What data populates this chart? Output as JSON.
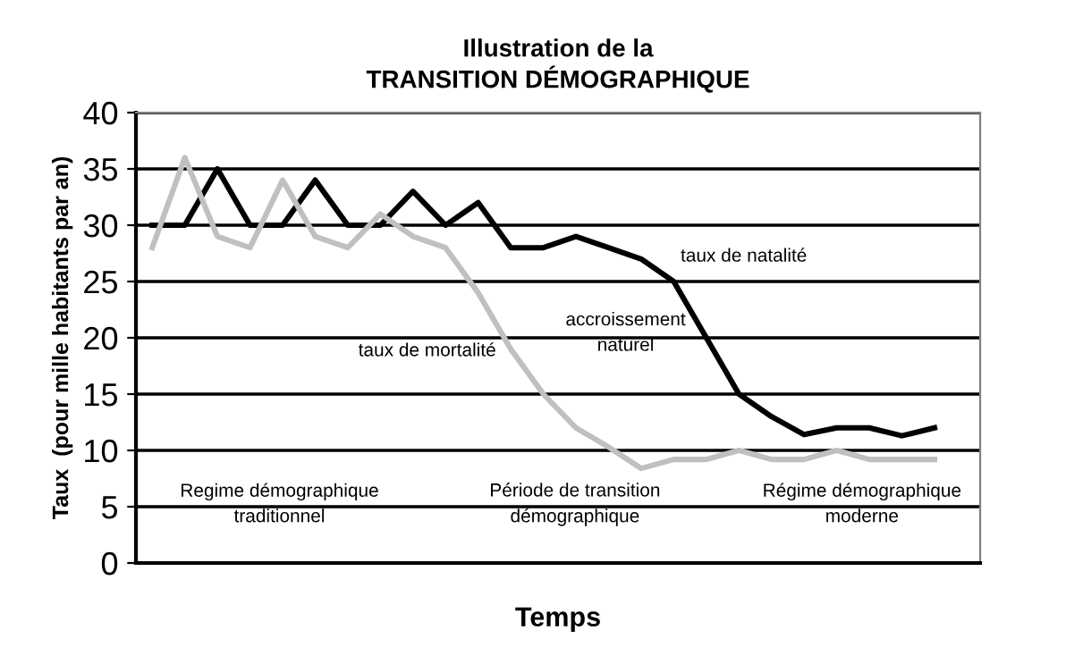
{
  "chart_data": {
    "type": "line",
    "title": "Illustration de la\nTRANSITION DÉMOGRAPHIQUE",
    "xlabel": "Temps",
    "ylabel": "Taux  (pour mille habitants par an)",
    "categories": [
      null,
      null,
      null,
      null,
      null,
      null,
      null,
      null,
      null,
      null,
      null,
      null,
      null,
      null,
      null,
      null,
      null,
      null,
      null,
      null,
      null,
      null,
      null,
      null,
      null
    ],
    "series": [
      {
        "name": "taux de natalité",
        "color": "#000000",
        "values": [
          30,
          30,
          35,
          30,
          30,
          34,
          30,
          30,
          33,
          30,
          32,
          28,
          28,
          29,
          28,
          27,
          25,
          20,
          15,
          13,
          11.4,
          12,
          12,
          11.3,
          12
        ]
      },
      {
        "name": "taux de mortalité",
        "color": "#c0c0c0",
        "values": [
          28,
          36,
          29,
          28,
          34,
          29,
          28,
          31,
          29,
          28,
          24,
          19,
          15,
          12,
          10.3,
          8.4,
          9.2,
          9.2,
          10,
          9.2,
          9.2,
          10,
          9.2,
          9.2,
          9.2
        ]
      }
    ],
    "annotations": [
      "accroissement\nnaturel",
      "Regime démographique\ntraditionnel",
      "Période de transition\ndémographique",
      "Régime démographique\nmoderne"
    ],
    "ylim": [
      0,
      40
    ],
    "yticks": [
      0,
      5,
      10,
      15,
      20,
      25,
      30,
      35,
      40
    ],
    "grid": "y",
    "legend": false,
    "marker": "none",
    "line_style": "solid"
  }
}
